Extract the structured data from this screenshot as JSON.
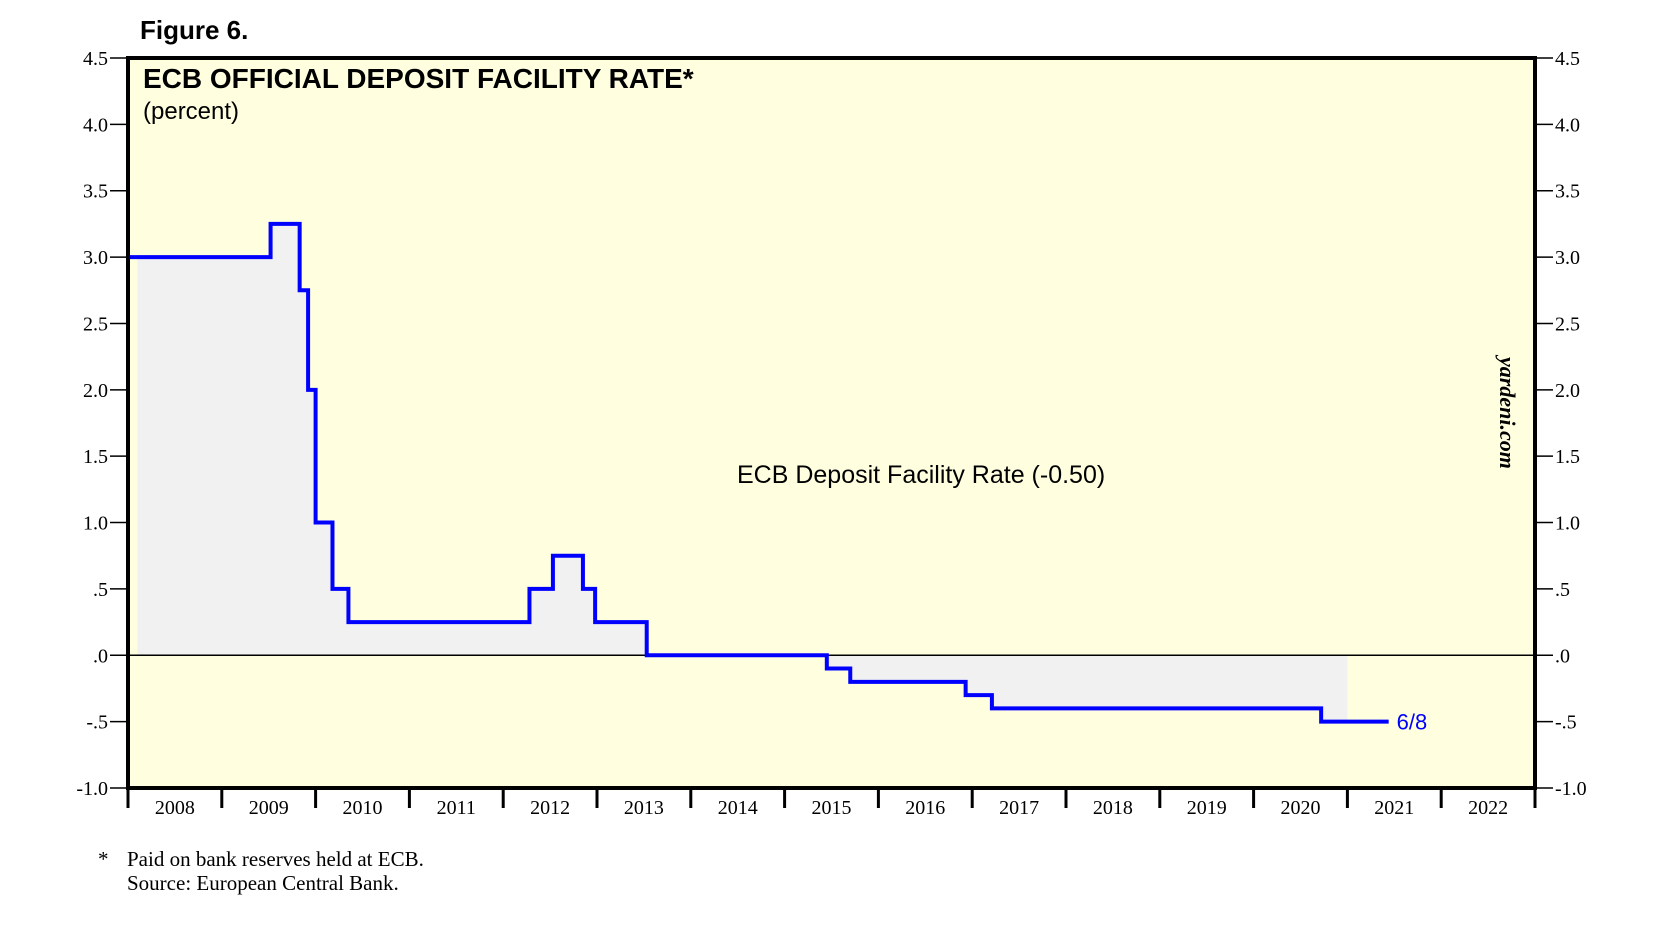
{
  "figure_label": "Figure 6.",
  "watermark": "yardeni.com",
  "footnotes": {
    "line1_marker": "*",
    "line1": "Paid on bank reserves held at ECB.",
    "line2": "Source: European Central Bank."
  },
  "colors": {
    "plot_background": "#ffffe0",
    "fill": "#f1f1f1",
    "line": "#0000ff",
    "axis": "#000000"
  },
  "chart_data": {
    "type": "line",
    "title": "ECB OFFICIAL DEPOSIT FACILITY RATE*",
    "subtitle": "(percent)",
    "series": [
      {
        "name": "ECB Deposit Facility Rate (-0.50)",
        "style": "step",
        "end_label": "6/8",
        "x": [
          2007.0,
          2008.52,
          2008.83,
          2008.92,
          2009.0,
          2009.18,
          2009.35,
          2011.28,
          2011.53,
          2011.85,
          2011.98,
          2012.53,
          2014.45,
          2014.7,
          2015.93,
          2016.21,
          2019.72,
          2020.44
        ],
        "y": [
          3.0,
          3.25,
          2.75,
          2.0,
          1.0,
          0.5,
          0.25,
          0.5,
          0.75,
          0.5,
          0.25,
          0.0,
          -0.1,
          -0.2,
          -0.3,
          -0.4,
          -0.5,
          -0.5
        ]
      }
    ],
    "shade_area": {
      "from_x": 2007.1,
      "to_x": 2020.0,
      "baseline": 0
    },
    "xlim": [
      2007.0,
      2022.0
    ],
    "ylim": [
      -1.0,
      4.5
    ],
    "x_tick_labels": [
      "2008",
      "2009",
      "2010",
      "2011",
      "2012",
      "2013",
      "2014",
      "2015",
      "2016",
      "2017",
      "2018",
      "2019",
      "2020",
      "2021",
      "2022"
    ],
    "y_ticks": [
      -1.0,
      -0.5,
      0.0,
      0.5,
      1.0,
      1.5,
      2.0,
      2.5,
      3.0,
      3.5,
      4.0,
      4.5
    ],
    "y_tick_labels": [
      "-1.0",
      "-.5",
      ".0",
      ".5",
      "1.0",
      "1.5",
      "2.0",
      "2.5",
      "3.0",
      "3.5",
      "4.0",
      "4.5"
    ],
    "grid": false,
    "zero_line": true
  }
}
